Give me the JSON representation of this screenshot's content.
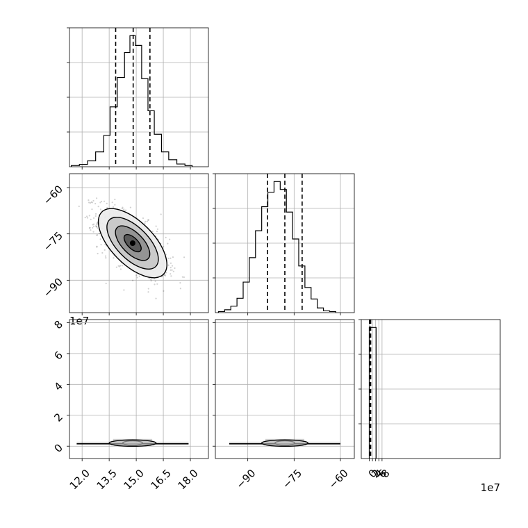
{
  "chart_data": {
    "type": "corner",
    "grid": true,
    "panels": [
      {
        "id": "hist-p1",
        "row": 0,
        "col": 0,
        "type": "histogram",
        "xlim": [
          11.3,
          19.0
        ],
        "bins": [
          {
            "lo": 11.4,
            "hi": 11.85,
            "c": 0.3
          },
          {
            "lo": 11.85,
            "hi": 12.3,
            "c": 0.6
          },
          {
            "lo": 12.3,
            "hi": 12.75,
            "c": 1.5
          },
          {
            "lo": 12.75,
            "hi": 13.2,
            "c": 3.8
          },
          {
            "lo": 13.2,
            "hi": 13.55,
            "c": 8.0
          },
          {
            "lo": 13.55,
            "hi": 13.95,
            "c": 15.3
          },
          {
            "lo": 13.95,
            "hi": 14.35,
            "c": 22.8
          },
          {
            "lo": 14.35,
            "hi": 14.65,
            "c": 29.2
          },
          {
            "lo": 14.65,
            "hi": 14.95,
            "c": 33.5
          },
          {
            "lo": 14.95,
            "hi": 15.3,
            "c": 31.0
          },
          {
            "lo": 15.3,
            "hi": 15.65,
            "c": 22.5
          },
          {
            "lo": 15.65,
            "hi": 16.0,
            "c": 14.3
          },
          {
            "lo": 16.0,
            "hi": 16.4,
            "c": 8.3
          },
          {
            "lo": 16.4,
            "hi": 16.8,
            "c": 3.8
          },
          {
            "lo": 16.8,
            "hi": 17.25,
            "c": 1.8
          },
          {
            "lo": 17.25,
            "hi": 17.7,
            "c": 0.7
          },
          {
            "lo": 17.7,
            "hi": 18.1,
            "c": 0.3
          }
        ],
        "quantiles": [
          13.86,
          14.83,
          15.76
        ]
      },
      {
        "id": "hist-p2",
        "row": 1,
        "col": 1,
        "type": "histogram",
        "xlim": [
          -100.5,
          -55.5
        ],
        "bins": [
          {
            "lo": -99.5,
            "hi": -97.5,
            "c": 0.3
          },
          {
            "lo": -97.5,
            "hi": -95.5,
            "c": 0.8
          },
          {
            "lo": -95.5,
            "hi": -93.5,
            "c": 1.8
          },
          {
            "lo": -93.5,
            "hi": -91.5,
            "c": 4.0
          },
          {
            "lo": -91.5,
            "hi": -89.5,
            "c": 8.5
          },
          {
            "lo": -89.5,
            "hi": -87.5,
            "c": 15.3
          },
          {
            "lo": -87.5,
            "hi": -85.5,
            "c": 22.8
          },
          {
            "lo": -85.5,
            "hi": -83.5,
            "c": 29.5
          },
          {
            "lo": -83.5,
            "hi": -81.5,
            "c": 33.5
          },
          {
            "lo": -81.5,
            "hi": -79.5,
            "c": 36.5
          },
          {
            "lo": -79.5,
            "hi": -77.5,
            "c": 34.3
          },
          {
            "lo": -77.5,
            "hi": -75.5,
            "c": 28.0
          },
          {
            "lo": -75.5,
            "hi": -73.5,
            "c": 20.5
          },
          {
            "lo": -73.5,
            "hi": -71.5,
            "c": 13.0
          },
          {
            "lo": -71.5,
            "hi": -69.5,
            "c": 7.0
          },
          {
            "lo": -69.5,
            "hi": -67.5,
            "c": 3.8
          },
          {
            "lo": -67.5,
            "hi": -65.5,
            "c": 1.3
          },
          {
            "lo": -65.5,
            "hi": -63.5,
            "c": 0.5
          },
          {
            "lo": -63.5,
            "hi": -61.5,
            "c": 0.3
          }
        ],
        "quantiles": [
          -83.6,
          -78.0,
          -72.4
        ]
      },
      {
        "id": "hist-p3",
        "row": 2,
        "col": 2,
        "type": "histogram",
        "xlim": [
          -5,
          82
        ],
        "bins": [
          {
            "lo": 0.0,
            "hi": 4.3,
            "c": 100
          }
        ],
        "quantiles": [
          0.15,
          0.6,
          0.9
        ]
      },
      {
        "id": "scatter-p2-vs-p1",
        "row": 1,
        "col": 0,
        "type": "density2d",
        "xlim": [
          11.3,
          19.0
        ],
        "ylim": [
          -100.5,
          -55.5
        ],
        "center": [
          14.8,
          -78.0
        ],
        "sigma": [
          0.95,
          5.6
        ],
        "rho": -0.62,
        "n_points": 1200,
        "contour_levels_sigma": [
          0.5,
          1.0,
          1.5,
          2.0
        ],
        "contour_fills": [
          "#555555",
          "#909090",
          "#c8c8c8",
          "#ececec"
        ]
      },
      {
        "id": "scatter-p3-vs-p1",
        "row": 2,
        "col": 0,
        "type": "flat-band",
        "xlim": [
          11.3,
          19.0
        ],
        "ylim": [
          -0.8,
          8.2
        ],
        "center": [
          14.8,
          0.2
        ],
        "band_halfwidth": 3.1,
        "band_height": 0.14,
        "contour_scales": [
          [
            0.55,
            0.22
          ],
          [
            1.3,
            0.36
          ]
        ]
      },
      {
        "id": "scatter-p3-vs-p2",
        "row": 2,
        "col": 1,
        "type": "flat-band",
        "xlim": [
          -100.5,
          -55.5
        ],
        "ylim": [
          -0.8,
          8.2
        ],
        "center": [
          -78.0,
          0.2
        ],
        "band_halfwidth": 18,
        "band_height": 0.14,
        "contour_scales": [
          [
            3.2,
            0.22
          ],
          [
            7.5,
            0.36
          ]
        ]
      }
    ],
    "axes": {
      "p1_ticks": [
        "12.0",
        "13.5",
        "15.0",
        "16.5",
        "18.0"
      ],
      "p1_tick_values": [
        12.0,
        13.5,
        15.0,
        16.5,
        18.0
      ],
      "p2_ticks": [
        "−90",
        "−75",
        "−60"
      ],
      "p2_tick_values": [
        -90,
        -75,
        -60
      ],
      "p3_ticks": [
        "0",
        "2",
        "4",
        "6",
        "8"
      ],
      "p3_tick_values": [
        0,
        2,
        4,
        6,
        8
      ],
      "offset_p2_label": "1e7",
      "offset_p3_x_label": "1e7"
    }
  }
}
